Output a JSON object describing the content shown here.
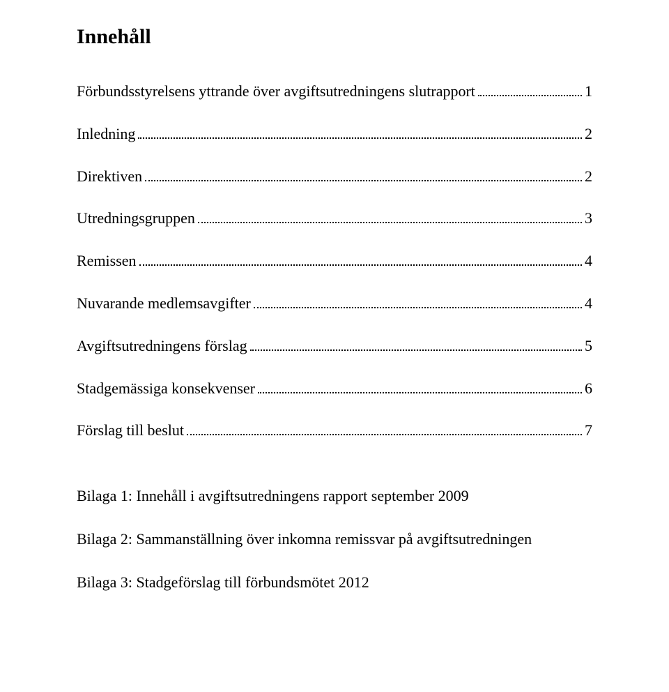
{
  "title": "Innehåll",
  "toc": [
    {
      "label": "Förbundsstyrelsens yttrande över avgiftsutredningens slutrapport",
      "page": "1"
    },
    {
      "label": "Inledning",
      "page": "2"
    },
    {
      "label": "Direktiven",
      "page": "2"
    },
    {
      "label": "Utredningsgruppen",
      "page": "3"
    },
    {
      "label": "Remissen",
      "page": "4"
    },
    {
      "label": "Nuvarande medlemsavgifter",
      "page": "4"
    },
    {
      "label": "Avgiftsutredningens förslag",
      "page": "5"
    },
    {
      "label": "Stadgemässiga konsekvenser",
      "page": "6"
    },
    {
      "label": "Förslag till beslut",
      "page": "7"
    }
  ],
  "appendix": [
    "Bilaga 1: Innehåll i avgiftsutredningens rapport september 2009",
    "Bilaga 2: Sammanställning över inkomna remissvar på avgiftsutredningen",
    "Bilaga 3: Stadgeförslag till förbundsmötet 2012"
  ],
  "colors": {
    "text": "#000000",
    "background": "#ffffff"
  },
  "typography": {
    "title_fontsize_pt": 22,
    "body_fontsize_pt": 17,
    "font_family": "Georgia / serif"
  }
}
